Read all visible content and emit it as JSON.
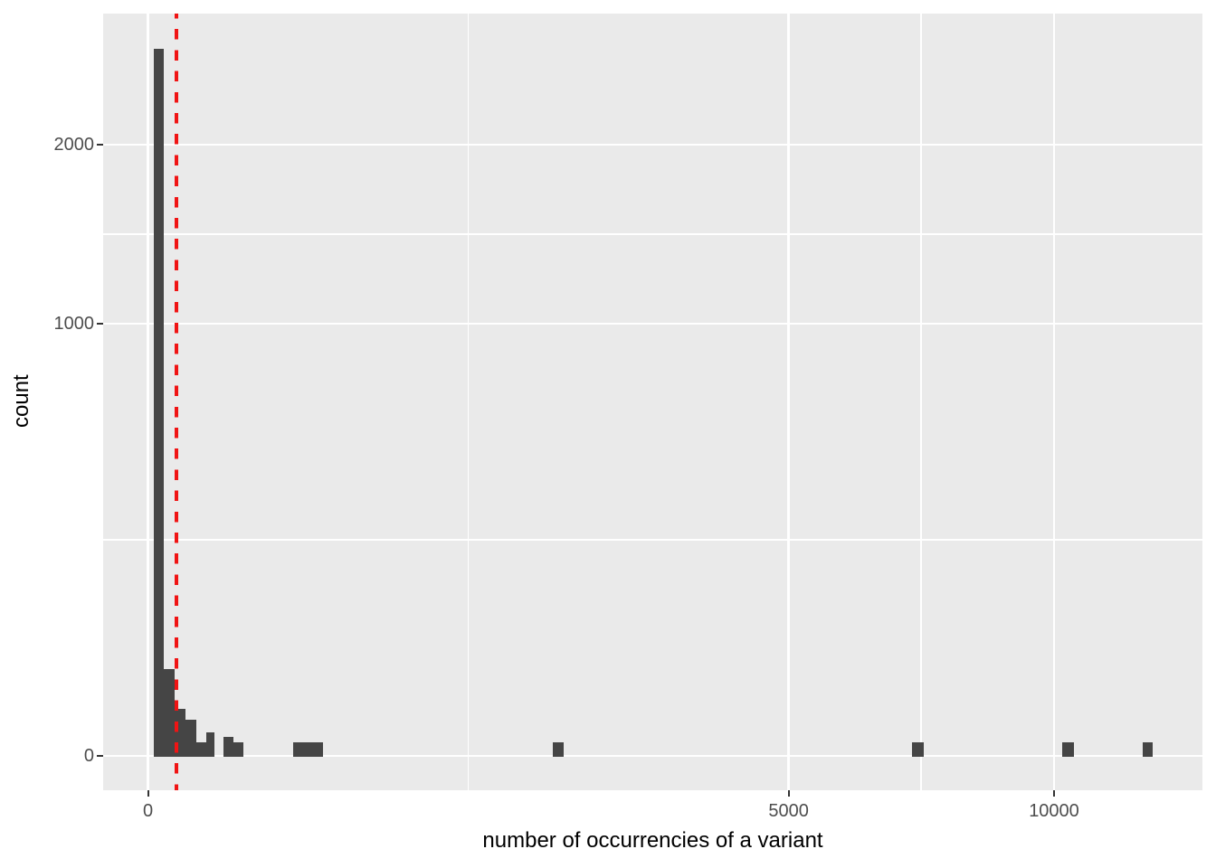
{
  "figure": {
    "background": "#ffffff"
  },
  "chart_data": {
    "type": "bar",
    "subtype": "histogram",
    "title": "",
    "xlabel": "number of occurrencies of a variant",
    "ylabel": "count",
    "x_scale": "sqrt",
    "y_scale": "sqrt",
    "x_ticks": [
      0,
      5000,
      10000
    ],
    "x_tick_labels": [
      "0",
      "5000",
      "10000"
    ],
    "x_minor_gridlines": [
      1250,
      7281
    ],
    "x_range": [
      0,
      13500
    ],
    "y_ticks": [
      0,
      1000,
      2000
    ],
    "y_tick_labels": [
      "0",
      "1000",
      "2000"
    ],
    "y_minor_gridlines": [
      250,
      1457
    ],
    "y_range": [
      0,
      2950
    ],
    "grid": true,
    "legend": "none",
    "bins": [
      {
        "x_from": 0.4,
        "x_to": 3.2,
        "count": 2675
      },
      {
        "x_from": 3.2,
        "x_to": 8.7,
        "count": 40
      },
      {
        "x_from": 8.7,
        "x_to": 17.2,
        "count": 12
      },
      {
        "x_from": 17.2,
        "x_to": 28.5,
        "count": 7
      },
      {
        "x_from": 28.5,
        "x_to": 42,
        "count": 1
      },
      {
        "x_from": 42,
        "x_to": 54,
        "count": 3
      },
      {
        "x_from": 69,
        "x_to": 89,
        "count": 2
      },
      {
        "x_from": 89,
        "x_to": 111,
        "count": 1
      },
      {
        "x_from": 257,
        "x_to": 373,
        "count": 1
      },
      {
        "x_from": 1996,
        "x_to": 2104,
        "count": 1
      },
      {
        "x_from": 7110,
        "x_to": 7327,
        "count": 1
      },
      {
        "x_from": 10180,
        "x_to": 10440,
        "count": 1
      },
      {
        "x_from": 12050,
        "x_to": 12295,
        "count": 1
      }
    ],
    "reference_line": {
      "orientation": "vertical",
      "x": 10,
      "style": "dashed",
      "color": "#f01414"
    }
  },
  "colors": {
    "panel_bg": "#eaeaea",
    "grid_major": "#ffffff",
    "grid_minor": "#ffffff",
    "bar_fill": "#454545",
    "vline": "#f01414",
    "tick_mark": "#333333",
    "tick_label": "#4d4d4d",
    "axis_title": "#000000"
  }
}
